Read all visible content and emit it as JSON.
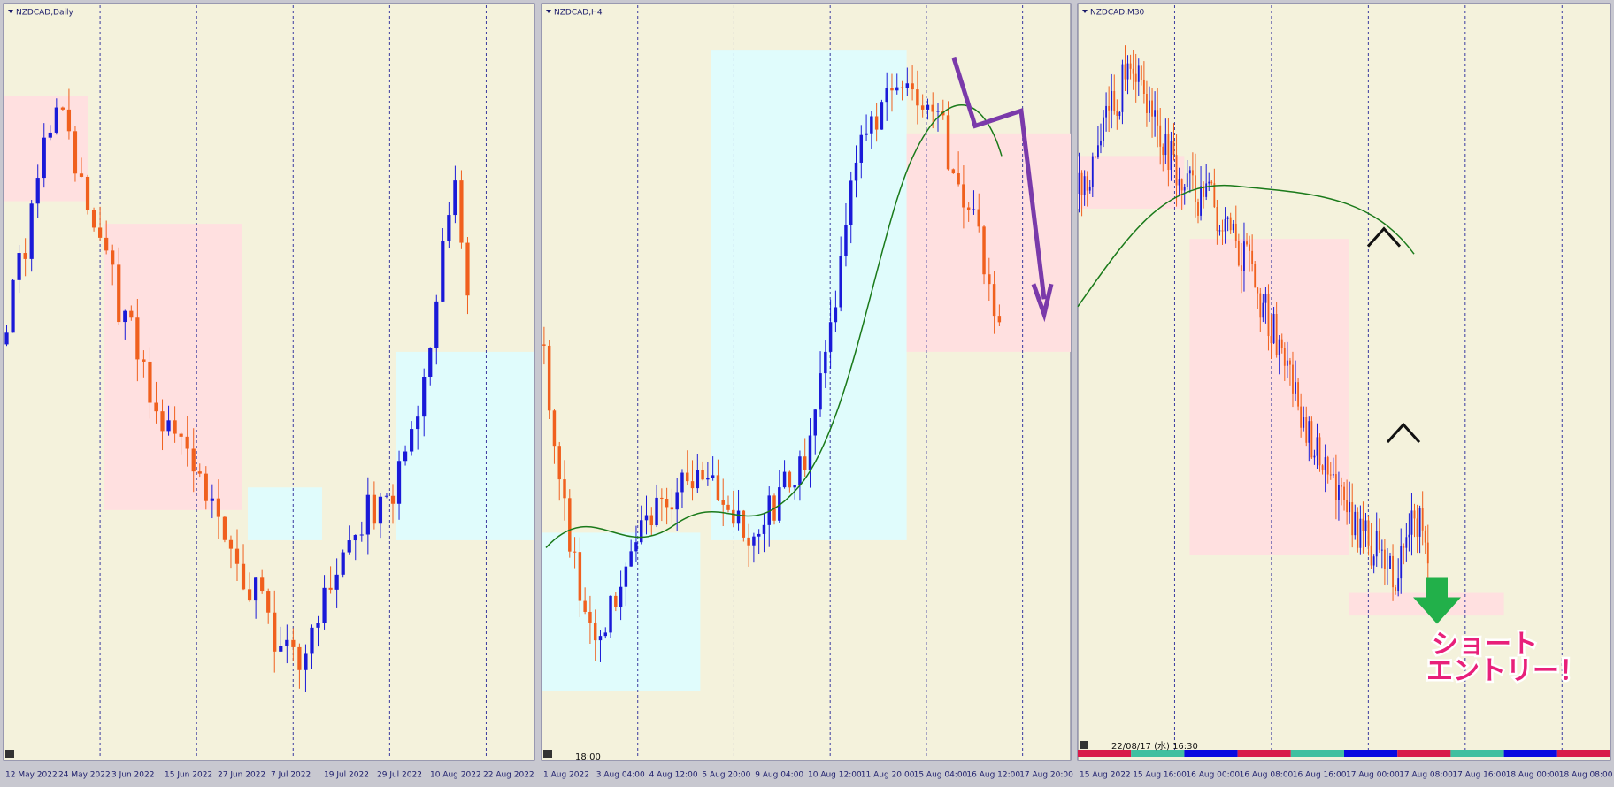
{
  "panels": [
    {
      "title": "NZDCAD,Daily",
      "x_labels": [
        "12 May 2022",
        "24 May 2022",
        "3 Jun 2022",
        "15 Jun 2022",
        "27 Jun 2022",
        "7 Jul 2022",
        "19 Jul 2022",
        "29 Jul 2022",
        "10 Aug 2022",
        "22 Aug 2022"
      ]
    },
    {
      "title": "NZDCAD,H4",
      "time": "18:00",
      "x_labels": [
        "1 Aug 2022",
        "3 Aug 04:00",
        "4 Aug 12:00",
        "5 Aug 20:00",
        "9 Aug 04:00",
        "10 Aug 12:00",
        "11 Aug 20:00",
        "15 Aug 04:00",
        "16 Aug 12:00",
        "17 Aug 20:00"
      ]
    },
    {
      "title": "NZDCAD,M30",
      "time": "22/08/17 (水) 16:30",
      "x_labels": [
        "15 Aug 2022",
        "15 Aug 16:00",
        "16 Aug 00:00",
        "16 Aug 08:00",
        "16 Aug 16:00",
        "17 Aug 00:00",
        "17 Aug 08:00",
        "17 Aug 16:00",
        "18 Aug 00:00",
        "18 Aug 08:00"
      ],
      "annotation": [
        "ショート",
        "エントリー！"
      ]
    }
  ]
}
